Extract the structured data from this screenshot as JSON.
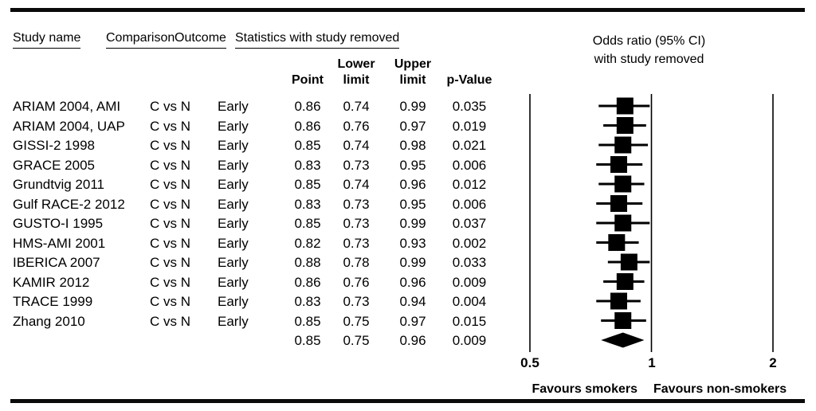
{
  "header": {
    "study": "Study name",
    "comparison": "Comparison",
    "outcome": "Outcome",
    "stats_group": "Statistics with study removed",
    "point": "Point",
    "lower_line1": "Lower",
    "lower_line2": "limit",
    "upper_line1": "Upper",
    "upper_line2": "limit",
    "pvalue": "p-Value",
    "plot_line1": "Odds ratio (95% CI)",
    "plot_line2": "with study removed"
  },
  "colors": {
    "ink": "#000000",
    "background": "#ffffff"
  },
  "chart_data": {
    "type": "forest",
    "x_scale": "log2",
    "xlim": [
      0.5,
      2
    ],
    "reference_line": 1,
    "x_ticks": [
      0.5,
      1,
      2
    ],
    "x_tick_labels": [
      "0.5",
      "1",
      "2"
    ],
    "footer_left": "Favours smokers",
    "footer_right": "Favours non-smokers",
    "studies": [
      {
        "study": "ARIAM 2004, AMI",
        "comparison": "C vs N",
        "outcome": "Early",
        "point": 0.86,
        "lower": 0.74,
        "upper": 0.99,
        "p": 0.035
      },
      {
        "study": "ARIAM 2004, UAP",
        "comparison": "C vs N",
        "outcome": "Early",
        "point": 0.86,
        "lower": 0.76,
        "upper": 0.97,
        "p": 0.019
      },
      {
        "study": "GISSI-2 1998",
        "comparison": "C vs N",
        "outcome": "Early",
        "point": 0.85,
        "lower": 0.74,
        "upper": 0.98,
        "p": 0.021
      },
      {
        "study": "GRACE 2005",
        "comparison": "C vs N",
        "outcome": "Early",
        "point": 0.83,
        "lower": 0.73,
        "upper": 0.95,
        "p": 0.006
      },
      {
        "study": "Grundtvig 2011",
        "comparison": "C vs N",
        "outcome": "Early",
        "point": 0.85,
        "lower": 0.74,
        "upper": 0.96,
        "p": 0.012
      },
      {
        "study": "Gulf RACE-2 2012",
        "comparison": "C vs N",
        "outcome": "Early",
        "point": 0.83,
        "lower": 0.73,
        "upper": 0.95,
        "p": 0.006
      },
      {
        "study": "GUSTO-I 1995",
        "comparison": "C vs N",
        "outcome": "Early",
        "point": 0.85,
        "lower": 0.73,
        "upper": 0.99,
        "p": 0.037
      },
      {
        "study": "HMS-AMI 2001",
        "comparison": "C vs N",
        "outcome": "Early",
        "point": 0.82,
        "lower": 0.73,
        "upper": 0.93,
        "p": 0.002
      },
      {
        "study": "IBERICA 2007",
        "comparison": "C vs N",
        "outcome": "Early",
        "point": 0.88,
        "lower": 0.78,
        "upper": 0.99,
        "p": 0.033
      },
      {
        "study": "KAMIR 2012",
        "comparison": "C vs N",
        "outcome": "Early",
        "point": 0.86,
        "lower": 0.76,
        "upper": 0.96,
        "p": 0.009
      },
      {
        "study": "TRACE 1999",
        "comparison": "C vs N",
        "outcome": "Early",
        "point": 0.83,
        "lower": 0.73,
        "upper": 0.94,
        "p": 0.004
      },
      {
        "study": "Zhang 2010",
        "comparison": "C vs N",
        "outcome": "Early",
        "point": 0.85,
        "lower": 0.75,
        "upper": 0.97,
        "p": 0.015
      }
    ],
    "summary": {
      "point": 0.85,
      "lower": 0.75,
      "upper": 0.96,
      "p": 0.009
    }
  }
}
